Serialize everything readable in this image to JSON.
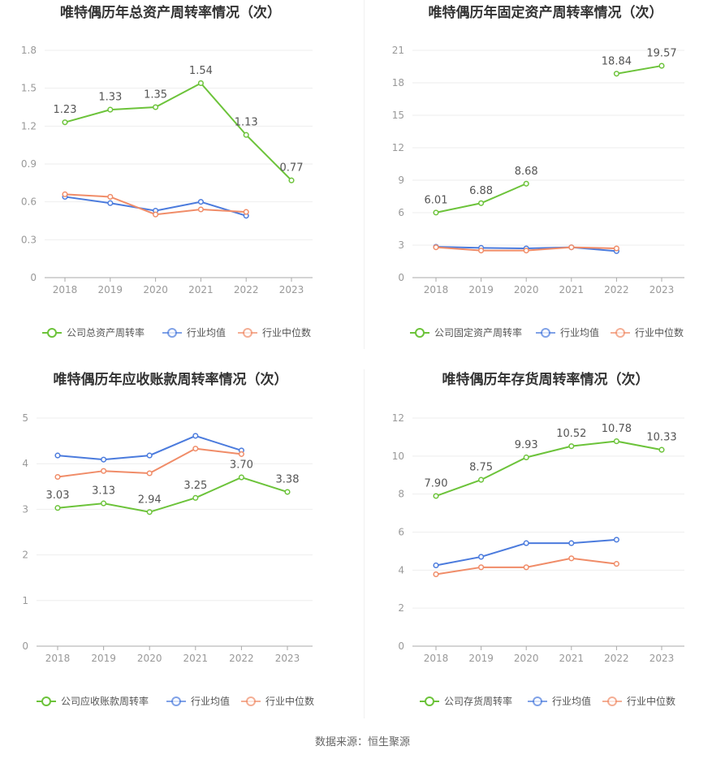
{
  "source_text": "数据来源：恒生聚源",
  "colors": {
    "company": "#6cc33a",
    "avg": "#4b7bdd",
    "median": "#f08c68",
    "grid": "#eeeeee",
    "axis": "#999999",
    "label": "#555555"
  },
  "chart_data": [
    {
      "type": "line",
      "title": "唯特偶历年总资产周转率情况（次）",
      "categories": [
        "2018",
        "2019",
        "2020",
        "2021",
        "2022",
        "2023"
      ],
      "ylim": [
        0,
        1.8
      ],
      "yticks": [
        "0",
        "0.3",
        "0.6",
        "0.9",
        "1.2",
        "1.5",
        "1.8"
      ],
      "grid": true,
      "legend_position": "bottom",
      "series": [
        {
          "name": "公司总资产周转率",
          "values": [
            1.23,
            1.33,
            1.35,
            1.54,
            1.13,
            0.77
          ],
          "labels": [
            "1.23",
            "1.33",
            "1.35",
            "1.54",
            "1.13",
            "0.77"
          ],
          "color": "#6cc33a"
        },
        {
          "name": "行业均值",
          "values": [
            0.64,
            0.59,
            0.53,
            0.6,
            0.49,
            null
          ],
          "color": "#4b7bdd"
        },
        {
          "name": "行业中位数",
          "values": [
            0.66,
            0.64,
            0.5,
            0.54,
            0.52,
            null
          ],
          "color": "#f08c68"
        }
      ]
    },
    {
      "type": "line",
      "title": "唯特偶历年固定资产周转率情况（次）",
      "categories": [
        "2018",
        "2019",
        "2020",
        "2021",
        "2022",
        "2023"
      ],
      "ylim": [
        0,
        21
      ],
      "yticks": [
        "0",
        "3",
        "6",
        "9",
        "12",
        "15",
        "18",
        "21"
      ],
      "grid": true,
      "legend_position": "bottom",
      "series": [
        {
          "name": "公司固定资产周转率",
          "values": [
            6.01,
            6.88,
            8.68,
            null,
            18.84,
            19.57
          ],
          "labels": [
            "6.01",
            "6.88",
            "8.68",
            "",
            "18.84",
            "19.57"
          ],
          "color": "#6cc33a"
        },
        {
          "name": "行业均值",
          "values": [
            2.85,
            2.75,
            2.7,
            2.8,
            2.45,
            null
          ],
          "color": "#4b7bdd"
        },
        {
          "name": "行业中位数",
          "values": [
            2.8,
            2.5,
            2.5,
            2.8,
            2.7,
            null
          ],
          "color": "#f08c68"
        }
      ]
    },
    {
      "type": "line",
      "title": "唯特偶历年应收账款周转率情况（次）",
      "categories": [
        "2018",
        "2019",
        "2020",
        "2021",
        "2022",
        "2023"
      ],
      "ylim": [
        0,
        5
      ],
      "yticks": [
        "0",
        "1",
        "2",
        "3",
        "4",
        "5"
      ],
      "grid": true,
      "legend_position": "bottom",
      "series": [
        {
          "name": "公司应收账款周转率",
          "values": [
            3.03,
            3.13,
            2.94,
            3.25,
            3.7,
            3.38
          ],
          "labels": [
            "3.03",
            "3.13",
            "2.94",
            "3.25",
            "3.70",
            "3.38"
          ],
          "color": "#6cc33a"
        },
        {
          "name": "行业均值",
          "values": [
            4.18,
            4.09,
            4.18,
            4.61,
            4.29,
            null
          ],
          "color": "#4b7bdd"
        },
        {
          "name": "行业中位数",
          "values": [
            3.71,
            3.84,
            3.79,
            4.33,
            4.21,
            null
          ],
          "color": "#f08c68"
        }
      ]
    },
    {
      "type": "line",
      "title": "唯特偶历年存货周转率情况（次）",
      "categories": [
        "2018",
        "2019",
        "2020",
        "2021",
        "2022",
        "2023"
      ],
      "ylim": [
        0,
        12
      ],
      "yticks": [
        "0",
        "2",
        "4",
        "6",
        "8",
        "10",
        "12"
      ],
      "grid": true,
      "legend_position": "bottom",
      "series": [
        {
          "name": "公司存货周转率",
          "values": [
            7.9,
            8.75,
            9.93,
            10.52,
            10.78,
            10.33
          ],
          "labels": [
            "7.90",
            "8.75",
            "9.93",
            "10.52",
            "10.78",
            "10.33"
          ],
          "color": "#6cc33a"
        },
        {
          "name": "行业均值",
          "values": [
            4.25,
            4.7,
            5.42,
            5.42,
            5.6,
            null
          ],
          "color": "#4b7bdd"
        },
        {
          "name": "行业中位数",
          "values": [
            3.78,
            4.15,
            4.15,
            4.62,
            4.33,
            null
          ],
          "color": "#f08c68"
        }
      ]
    }
  ]
}
